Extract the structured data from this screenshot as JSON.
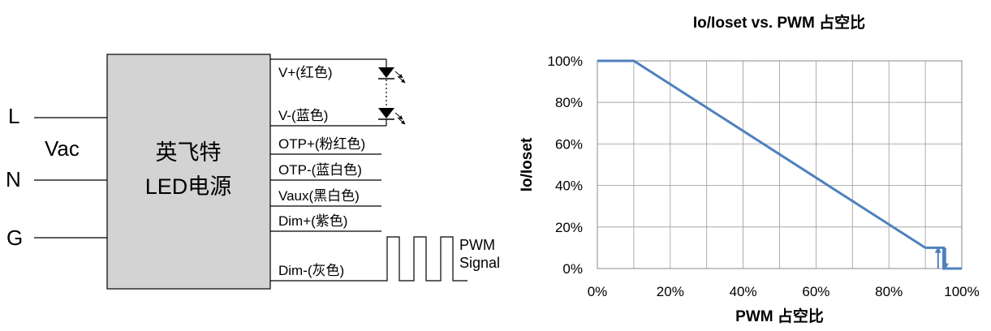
{
  "diagram": {
    "input_labels": {
      "L": "L",
      "N": "N",
      "G": "G",
      "vac": "Vac"
    },
    "box": {
      "line1": "英飞特",
      "line2": "LED电源",
      "fill": "#d3d3d3"
    },
    "wires": [
      {
        "key": "vplus",
        "label": "V+(红色)"
      },
      {
        "key": "vminus",
        "label": "V-(蓝色)"
      },
      {
        "key": "otpplus",
        "label": "OTP+(粉红色)"
      },
      {
        "key": "otpminus",
        "label": "OTP-(蓝白色)"
      },
      {
        "key": "vaux",
        "label": "Vaux(黑白色)"
      },
      {
        "key": "dimplus",
        "label": "Dim+(紫色)"
      },
      {
        "key": "dimminus",
        "label": "Dim-(灰色)"
      }
    ],
    "pwm_label_line1": "PWM",
    "pwm_label_line2": "Signal"
  },
  "chart_data": {
    "type": "line",
    "title": "Io/Ioset vs. PWM 占空比",
    "xlabel": "PWM 占空比",
    "ylabel": "Io/Ioset",
    "xlim": [
      0,
      100
    ],
    "ylim": [
      0,
      100
    ],
    "x_ticks": [
      "0%",
      "20%",
      "40%",
      "60%",
      "80%",
      "100%"
    ],
    "y_ticks": [
      "0%",
      "20%",
      "40%",
      "60%",
      "80%",
      "100%"
    ],
    "grid": true,
    "series": [
      {
        "color": "#4f81bd",
        "x": [
          0,
          10,
          90,
          95,
          95,
          100
        ],
        "y": [
          100,
          100,
          10,
          10,
          0,
          0
        ]
      }
    ],
    "annotations": [
      {
        "type": "arrow-up",
        "x": 93.5,
        "y_from": 0,
        "y_to": 10
      },
      {
        "type": "arrow-down",
        "x": 95.5,
        "y_from": 10,
        "y_to": 0
      }
    ]
  }
}
